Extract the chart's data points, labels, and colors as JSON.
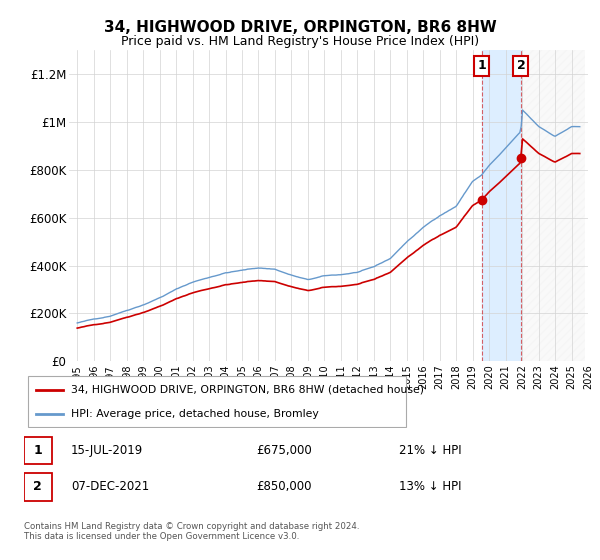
{
  "title": "34, HIGHWOOD DRIVE, ORPINGTON, BR6 8HW",
  "subtitle": "Price paid vs. HM Land Registry's House Price Index (HPI)",
  "ylabel_ticks": [
    "£0",
    "£200K",
    "£400K",
    "£600K",
    "£800K",
    "£1M",
    "£1.2M"
  ],
  "ytick_values": [
    0,
    200000,
    400000,
    600000,
    800000,
    1000000,
    1200000
  ],
  "ylim": [
    0,
    1300000
  ],
  "hpi_color": "#6699cc",
  "price_color": "#cc0000",
  "shade_color": "#ddeeff",
  "legend_label_price": "34, HIGHWOOD DRIVE, ORPINGTON, BR6 8HW (detached house)",
  "legend_label_hpi": "HPI: Average price, detached house, Bromley",
  "annotation1_label": "1",
  "annotation1_date": "15-JUL-2019",
  "annotation1_price": "£675,000",
  "annotation1_hpi": "21% ↓ HPI",
  "annotation1_year": 2019.54,
  "annotation1_value": 675000,
  "annotation2_label": "2",
  "annotation2_date": "07-DEC-2021",
  "annotation2_price": "£850,000",
  "annotation2_hpi": "13% ↓ HPI",
  "annotation2_year": 2021.93,
  "annotation2_value": 850000,
  "footer": "Contains HM Land Registry data © Crown copyright and database right 2024.\nThis data is licensed under the Open Government Licence v3.0.",
  "xstart": 1995,
  "xend": 2026
}
